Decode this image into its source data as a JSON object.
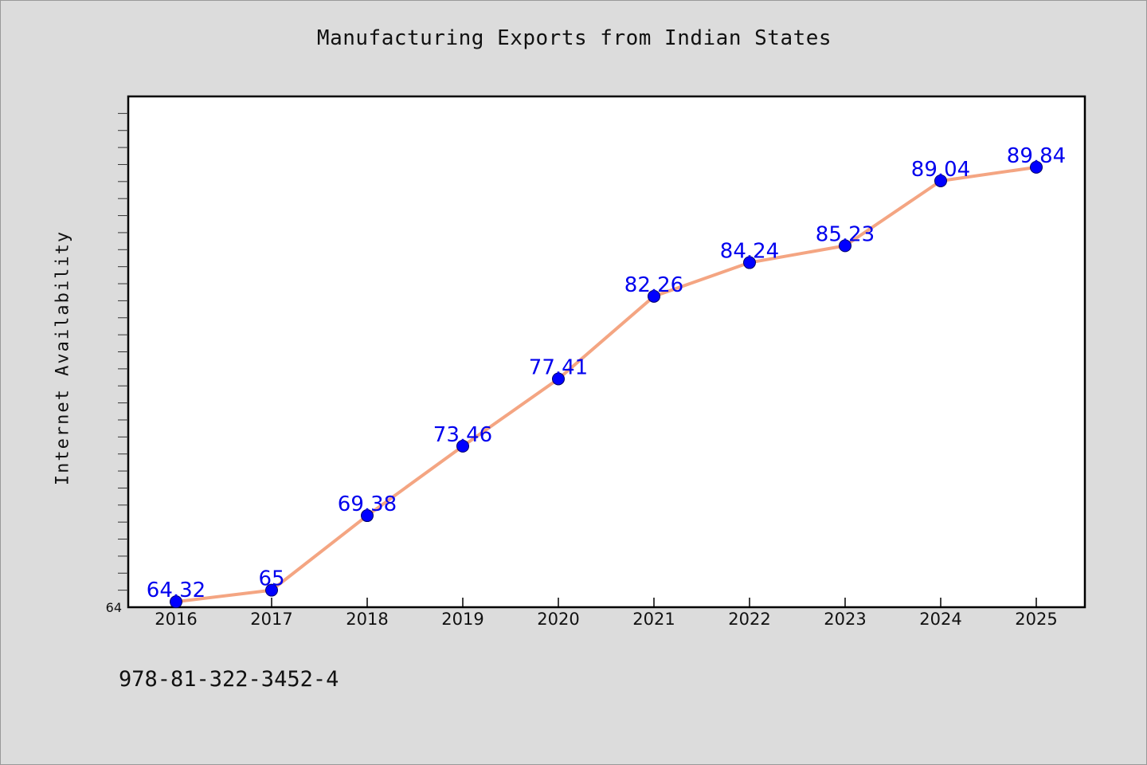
{
  "chart_data": {
    "type": "line",
    "title": "Manufacturing Exports from Indian States",
    "xlabel": "",
    "ylabel": "Internet Availability",
    "categories": [
      "2016",
      "2017",
      "2018",
      "2019",
      "2020",
      "2021",
      "2022",
      "2023",
      "2024",
      "2025"
    ],
    "values": [
      64.32,
      65,
      69.38,
      73.46,
      77.41,
      82.26,
      84.24,
      85.23,
      89.04,
      89.84
    ],
    "data_labels": [
      "64.32",
      "65",
      "69.38",
      "73.46",
      "77.41",
      "82.26",
      "84.24",
      "85.23",
      "89.04",
      "89.84"
    ],
    "ylim": [
      64,
      94
    ],
    "y_tick_labels": [
      "64"
    ],
    "grid": false,
    "legend": "none",
    "colors": {
      "line": "#f4a582",
      "marker": "#0000ff",
      "label": "#0000ee",
      "plot_background": "#ffffff",
      "page_background": "#dcdcdc"
    }
  },
  "footer": {
    "code": "978-81-322-3452-4"
  }
}
